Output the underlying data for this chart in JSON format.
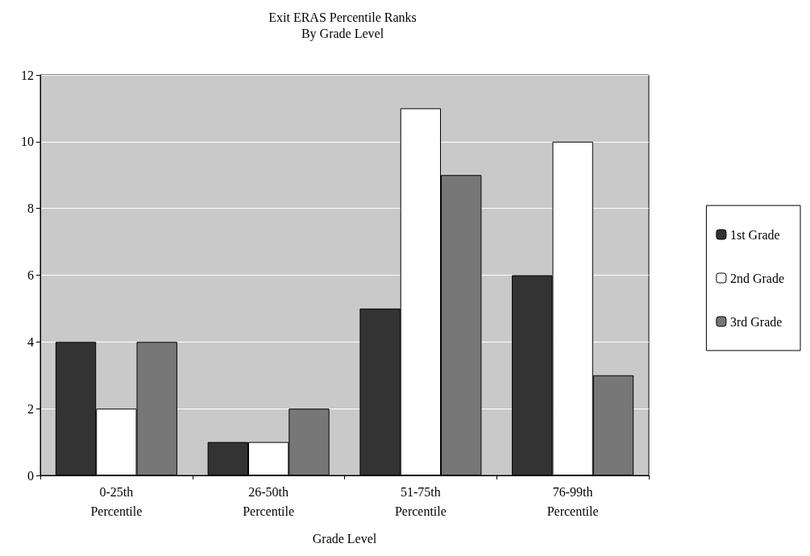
{
  "chart_data": {
    "type": "bar",
    "title": "Exit ERAS Percentile Ranks",
    "subtitle": "By Grade Level",
    "xlabel": "Grade Level",
    "categories": [
      "0-25th Percentile",
      "26-50th Percentile",
      "51-75th Percentile",
      "76-99th Percentile"
    ],
    "series": [
      {
        "name": "1st Grade",
        "color": "#333333",
        "values": [
          4,
          1,
          5,
          6
        ]
      },
      {
        "name": "2nd Grade",
        "color": "#ffffff",
        "values": [
          2,
          1,
          11,
          10
        ]
      },
      {
        "name": "3rd Grade",
        "color": "#777777",
        "values": [
          4,
          2,
          9,
          3
        ]
      }
    ],
    "ylim": [
      0,
      12
    ],
    "yticks": [
      0,
      2,
      4,
      6,
      8,
      10,
      12
    ],
    "grid": "y",
    "legend": "right"
  }
}
